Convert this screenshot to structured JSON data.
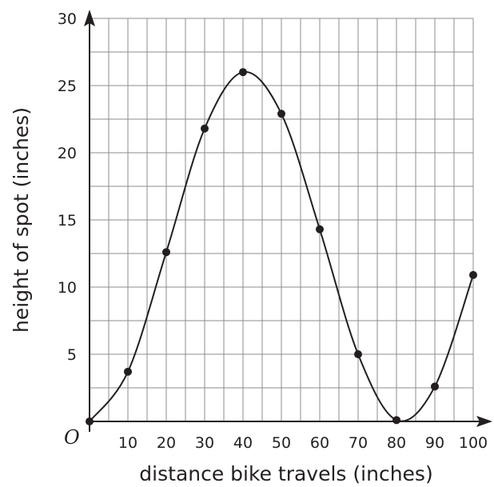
{
  "chart_data": {
    "type": "scatter",
    "title": "",
    "xlabel": "distance bike travels (inches)",
    "ylabel": "height of spot (inches)",
    "origin_label": "O",
    "xlim": [
      0,
      100
    ],
    "ylim": [
      0,
      30
    ],
    "grid": true,
    "grid_step": {
      "x": 5,
      "y": 2.5
    },
    "xticks": [
      10,
      20,
      30,
      40,
      50,
      60,
      70,
      80,
      90,
      100
    ],
    "yticks": [
      5,
      10,
      15,
      20,
      25,
      30
    ],
    "points": {
      "x": [
        0,
        10,
        20,
        30,
        40,
        50,
        60,
        70,
        80,
        90,
        100
      ],
      "y": [
        0,
        3.7,
        12.6,
        21.8,
        26,
        22.9,
        14.3,
        5,
        0.1,
        2.6,
        10.9
      ]
    },
    "curve": {
      "type": "smooth",
      "through_points": true
    },
    "colors": {
      "ink": "#231f20",
      "grid": "#8c8c8c",
      "background": "#ffffff"
    }
  }
}
